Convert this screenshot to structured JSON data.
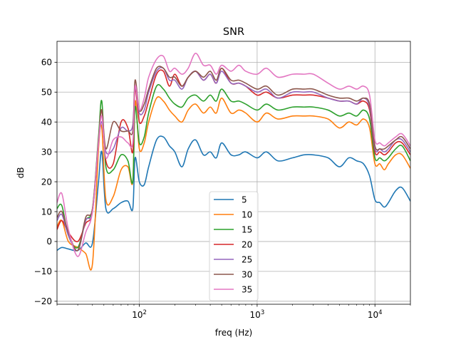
{
  "chart_data": {
    "type": "line",
    "title": "SNR",
    "xlabel": "freq (Hz)",
    "ylabel": "dB",
    "xscale": "log",
    "xlim": [
      20,
      20000
    ],
    "ylim": [
      -21,
      67
    ],
    "xticks": [
      {
        "value": 100,
        "label": "10",
        "exp": "2"
      },
      {
        "value": 1000,
        "label": "10",
        "exp": "3"
      },
      {
        "value": 10000,
        "label": "10",
        "exp": "4"
      }
    ],
    "yticks": [
      -20,
      -10,
      0,
      10,
      20,
      30,
      40,
      50,
      60
    ],
    "grid": true,
    "legend": "lower center",
    "x": [
      20,
      22,
      25,
      30,
      35,
      40,
      45,
      48,
      52,
      60,
      70,
      80,
      88,
      92,
      100,
      110,
      120,
      140,
      160,
      180,
      200,
      230,
      260,
      300,
      350,
      400,
      450,
      500,
      600,
      700,
      800,
      1000,
      1200,
      1500,
      2000,
      2500,
      3000,
      4000,
      5000,
      6000,
      7000,
      8000,
      9000,
      10000,
      11000,
      12000,
      13000,
      15000,
      17000,
      20000
    ],
    "series": [
      {
        "name": "5",
        "color": "#1f77b4",
        "values": [
          -3,
          -2,
          -2.5,
          -3,
          -0.5,
          -0.5,
          20,
          30,
          11,
          11,
          13,
          13.5,
          11,
          28,
          20,
          19,
          25,
          34,
          35,
          32,
          30,
          25,
          31,
          34,
          29,
          30,
          28,
          33,
          29,
          29,
          30,
          28,
          30,
          27,
          28,
          29,
          29,
          28,
          25,
          28,
          27,
          26,
          22,
          14,
          13,
          11.5,
          13,
          17,
          18,
          13.5
        ]
      },
      {
        "name": "10",
        "color": "#ff7f0e",
        "values": [
          5,
          7,
          0,
          -2,
          -4,
          -7.5,
          31,
          38,
          14,
          15,
          24,
          25,
          20,
          47,
          31,
          33,
          40,
          48,
          47,
          44,
          42,
          40,
          44,
          46,
          43,
          45,
          43,
          48,
          43,
          44,
          43,
          40,
          43,
          41,
          42,
          42,
          42,
          41,
          38,
          40,
          39,
          41,
          38,
          26,
          26,
          24,
          26,
          29,
          29,
          24.5
        ]
      },
      {
        "name": "15",
        "color": "#2ca02c",
        "values": [
          11,
          12,
          2,
          -2,
          7,
          11,
          35,
          47,
          25,
          24,
          29,
          27,
          20,
          45,
          33,
          35,
          43,
          52,
          51,
          48,
          46,
          45,
          48,
          49,
          47,
          49,
          47,
          51,
          47,
          47,
          46,
          44,
          46,
          44,
          45,
          45,
          45,
          44,
          42,
          43,
          42,
          44,
          41,
          28,
          28,
          27,
          28,
          31,
          32,
          27
        ]
      },
      {
        "name": "20",
        "color": "#d62728",
        "values": [
          4,
          7,
          3,
          0,
          6,
          10,
          33,
          44,
          27,
          26,
          40,
          38,
          30,
          51,
          40,
          42,
          47,
          56,
          57,
          52,
          56,
          52,
          55,
          57,
          54,
          56,
          53,
          58,
          53,
          53,
          52,
          49,
          50,
          48,
          49,
          49,
          49,
          48,
          47,
          47,
          46,
          47,
          44,
          30,
          30,
          29,
          30,
          33,
          33,
          29
        ]
      },
      {
        "name": "25",
        "color": "#9467bd",
        "values": [
          7,
          9,
          2,
          -3,
          7,
          10,
          33,
          40,
          30,
          31,
          38,
          37,
          39,
          52,
          43,
          44,
          50,
          57,
          58,
          54,
          54,
          51,
          55,
          57,
          54,
          56,
          53,
          57,
          53,
          53,
          52,
          50,
          51,
          48,
          50,
          50,
          50,
          48,
          47,
          47,
          46,
          48,
          45,
          31,
          31,
          30,
          31,
          34,
          34,
          30
        ]
      },
      {
        "name": "30",
        "color": "#8c564b",
        "values": [
          8,
          10,
          3,
          -3,
          8,
          11,
          34,
          44,
          31,
          40,
          37,
          37,
          37,
          54,
          44,
          46,
          51,
          58,
          58,
          55,
          55,
          52,
          55,
          57,
          55,
          57,
          54,
          58,
          54,
          54,
          53,
          51,
          52,
          49,
          51,
          51,
          51,
          49,
          48,
          48,
          47,
          48,
          46,
          32,
          31,
          31,
          32,
          34,
          35,
          31
        ]
      },
      {
        "name": "35",
        "color": "#e377c2",
        "values": [
          13,
          16,
          4,
          -5,
          3,
          10,
          33,
          42,
          28,
          34,
          35,
          33,
          33,
          52,
          44,
          48,
          55,
          61,
          62,
          57,
          58,
          56,
          58,
          63,
          59,
          59,
          56,
          59,
          57,
          59,
          57,
          56,
          58,
          55,
          56,
          56,
          56,
          53,
          51,
          52,
          51,
          52,
          49,
          34,
          33,
          32,
          33,
          35,
          36,
          32
        ]
      }
    ]
  }
}
